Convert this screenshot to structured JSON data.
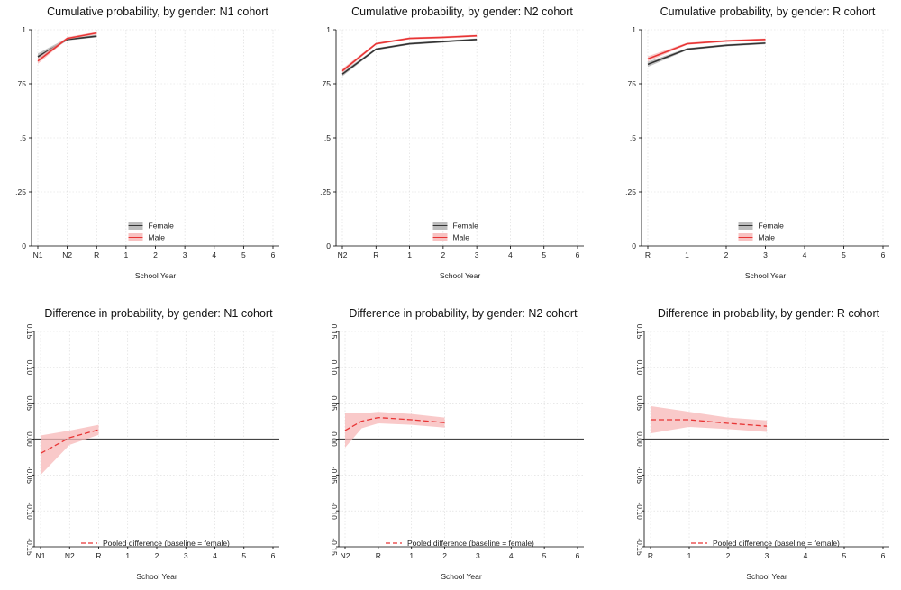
{
  "chart_data": [
    {
      "type": "line",
      "title": "Cumulative probability, by gender: N1 cohort",
      "xlabel": "School Year",
      "ylabel": "",
      "x_ticks": [
        "N1",
        "N2",
        "R",
        "1",
        "2",
        "3",
        "4",
        "5",
        "6"
      ],
      "y_ticks": [
        "0",
        ".25",
        ".5",
        ".75",
        "1"
      ],
      "ylim": [
        0,
        1
      ],
      "grid": true,
      "legend_placement": "bottom-center",
      "series": [
        {
          "name": "Female",
          "color": "#333333",
          "band_color": "#b0b0b0",
          "x": [
            0,
            1,
            2
          ],
          "values": [
            0.875,
            0.955,
            0.97
          ],
          "lower": [
            0.862,
            0.95,
            0.965
          ],
          "upper": [
            0.89,
            0.962,
            0.977
          ]
        },
        {
          "name": "Male",
          "color": "#e83535",
          "band_color": "#f7b7b7",
          "x": [
            0,
            1,
            2
          ],
          "values": [
            0.855,
            0.96,
            0.985
          ],
          "lower": [
            0.842,
            0.955,
            0.978
          ],
          "upper": [
            0.87,
            0.966,
            0.99
          ]
        }
      ]
    },
    {
      "type": "line",
      "title": "Cumulative probability, by gender: N2 cohort",
      "xlabel": "School Year",
      "ylabel": "",
      "x_ticks": [
        "N2",
        "R",
        "1",
        "2",
        "3",
        "4",
        "5",
        "6"
      ],
      "y_ticks": [
        "0",
        ".25",
        ".5",
        ".75",
        "1"
      ],
      "ylim": [
        0,
        1
      ],
      "grid": true,
      "legend_placement": "bottom-center",
      "series": [
        {
          "name": "Female",
          "color": "#333333",
          "band_color": "#b0b0b0",
          "x": [
            0,
            1,
            2,
            3,
            4
          ],
          "values": [
            0.795,
            0.91,
            0.935,
            0.945,
            0.955
          ],
          "lower": [
            0.785,
            0.905,
            0.93,
            0.94,
            0.95
          ],
          "upper": [
            0.805,
            0.915,
            0.94,
            0.95,
            0.96
          ]
        },
        {
          "name": "Male",
          "color": "#e83535",
          "band_color": "#f7b7b7",
          "x": [
            0,
            1,
            2,
            3,
            4
          ],
          "values": [
            0.81,
            0.935,
            0.96,
            0.965,
            0.972
          ],
          "lower": [
            0.8,
            0.93,
            0.955,
            0.96,
            0.967
          ],
          "upper": [
            0.82,
            0.94,
            0.965,
            0.97,
            0.977
          ]
        }
      ]
    },
    {
      "type": "line",
      "title": "Cumulative probability, by gender: R cohort",
      "xlabel": "School Year",
      "ylabel": "",
      "x_ticks": [
        "R",
        "1",
        "2",
        "3",
        "4",
        "5",
        "6"
      ],
      "y_ticks": [
        "0",
        ".25",
        ".5",
        ".75",
        "1"
      ],
      "ylim": [
        0,
        1
      ],
      "grid": true,
      "legend_placement": "bottom-center",
      "series": [
        {
          "name": "Female",
          "color": "#333333",
          "band_color": "#b0b0b0",
          "x": [
            0,
            1,
            2,
            3
          ],
          "values": [
            0.84,
            0.91,
            0.928,
            0.938
          ],
          "lower": [
            0.828,
            0.905,
            0.923,
            0.933
          ],
          "upper": [
            0.852,
            0.915,
            0.933,
            0.943
          ]
        },
        {
          "name": "Male",
          "color": "#e83535",
          "band_color": "#f7b7b7",
          "x": [
            0,
            1,
            2,
            3
          ],
          "values": [
            0.865,
            0.935,
            0.948,
            0.955
          ],
          "lower": [
            0.853,
            0.93,
            0.943,
            0.95
          ],
          "upper": [
            0.877,
            0.94,
            0.953,
            0.96
          ]
        }
      ]
    },
    {
      "type": "line",
      "title": "Difference in probability, by gender: N1 cohort",
      "xlabel": "School Year",
      "ylabel": "",
      "x_ticks": [
        "N1",
        "N2",
        "R",
        "1",
        "2",
        "3",
        "4",
        "5",
        "6"
      ],
      "y_ticks": [
        "-0.15",
        "-0.10",
        "-0.05",
        "0.00",
        "0.05",
        "0.10",
        "0.15"
      ],
      "ylim": [
        -0.15,
        0.15
      ],
      "grid": true,
      "zero_line": true,
      "legend_placement": "bottom-center",
      "series": [
        {
          "name": "Pooled difference (baseline = female)",
          "color": "#e83535",
          "band_color": "#f7b7b7",
          "dashed": true,
          "x": [
            0,
            1,
            2
          ],
          "values": [
            -0.02,
            0.002,
            0.013
          ],
          "lower": [
            -0.05,
            -0.008,
            0.006
          ],
          "upper": [
            0.005,
            0.012,
            0.02
          ]
        }
      ]
    },
    {
      "type": "line",
      "title": "Difference in probability, by gender: N2 cohort",
      "xlabel": "School Year",
      "ylabel": "",
      "x_ticks": [
        "N2",
        "R",
        "1",
        "2",
        "3",
        "4",
        "5",
        "6"
      ],
      "y_ticks": [
        "-0.15",
        "-0.10",
        "-0.05",
        "0.00",
        "0.05",
        "0.10",
        "0.15"
      ],
      "ylim": [
        -0.15,
        0.15
      ],
      "grid": true,
      "zero_line": true,
      "legend_placement": "bottom-center",
      "series": [
        {
          "name": "Pooled difference (baseline = female)",
          "color": "#e83535",
          "band_color": "#f7b7b7",
          "dashed": true,
          "x": [
            0,
            0.5,
            1,
            2,
            3
          ],
          "values": [
            0.012,
            0.025,
            0.03,
            0.027,
            0.023
          ],
          "lower": [
            -0.012,
            0.015,
            0.022,
            0.02,
            0.016
          ],
          "upper": [
            0.036,
            0.036,
            0.038,
            0.035,
            0.03
          ]
        }
      ]
    },
    {
      "type": "line",
      "title": "Difference in probability, by gender: R cohort",
      "xlabel": "School Year",
      "ylabel": "",
      "x_ticks": [
        "R",
        "1",
        "2",
        "3",
        "4",
        "5",
        "6"
      ],
      "y_ticks": [
        "-0.15",
        "-0.10",
        "-0.05",
        "0.00",
        "0.05",
        "0.10",
        "0.15"
      ],
      "ylim": [
        -0.15,
        0.15
      ],
      "grid": true,
      "zero_line": true,
      "legend_placement": "bottom-center",
      "series": [
        {
          "name": "Pooled difference (baseline = female)",
          "color": "#e83535",
          "band_color": "#f7b7b7",
          "dashed": true,
          "x": [
            0,
            1,
            2,
            3
          ],
          "values": [
            0.027,
            0.027,
            0.022,
            0.018
          ],
          "lower": [
            0.008,
            0.017,
            0.014,
            0.01
          ],
          "upper": [
            0.046,
            0.038,
            0.03,
            0.026
          ]
        }
      ]
    }
  ]
}
